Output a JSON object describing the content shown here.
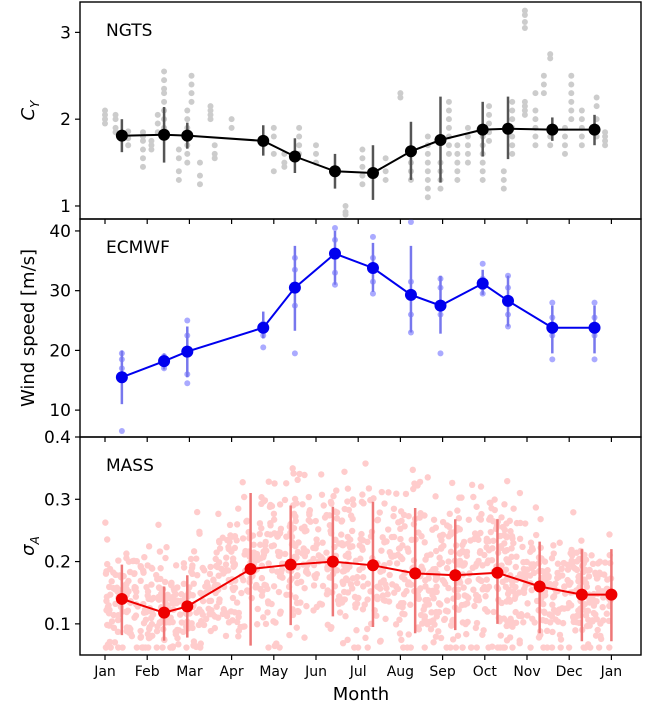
{
  "xaxis": {
    "label": "Month",
    "ticks": [
      "Jan",
      "Feb",
      "Mar",
      "Apr",
      "May",
      "Jun",
      "Jul",
      "Aug",
      "Sep",
      "Oct",
      "Nov",
      "Dec",
      "Jan"
    ]
  },
  "chart_data": [
    {
      "type": "line",
      "panel_label": "NGTS",
      "ylabel_main": "C",
      "ylabel_sub": "Y",
      "ylim": [
        0.85,
        3.35
      ],
      "yticks": [
        1,
        2,
        3
      ],
      "line_color": "#000000",
      "err_color": "#555555",
      "scatter_color": "#cccccc",
      "x": [
        0.5,
        1.25,
        1.5,
        2.3,
        2.65,
        3.3,
        3.7,
        4.3,
        5.0,
        5.5,
        5.85,
        6.3,
        6.95,
        7.5,
        8.0,
        8.6,
        9.3,
        9.7,
        10.2,
        10.7,
        11.2,
        11.65,
        12.0
      ],
      "mean_x": [
        0.4,
        1.4,
        1.95,
        3.75,
        4.5,
        5.45,
        6.35,
        7.25,
        7.95,
        8.95,
        9.55,
        10.6,
        11.6
      ],
      "mean_y": [
        1.81,
        1.82,
        1.81,
        1.75,
        1.57,
        1.4,
        1.38,
        1.63,
        1.76,
        1.88,
        1.89,
        1.88,
        1.88
      ],
      "err_lo": [
        1.62,
        1.5,
        1.66,
        1.58,
        1.38,
        1.2,
        1.07,
        1.3,
        1.27,
        1.57,
        1.54,
        1.75,
        1.7
      ],
      "err_hi": [
        2.0,
        2.14,
        1.96,
        1.93,
        1.78,
        1.6,
        1.7,
        1.97,
        2.26,
        2.2,
        2.26,
        2.02,
        2.05
      ],
      "scatter_groups": [
        {
          "x": 0.0,
          "y": [
            1.95,
            2.0,
            2.05,
            2.1
          ]
        },
        {
          "x": 0.25,
          "y": [
            1.85,
            1.9,
            2.0,
            2.05
          ]
        },
        {
          "x": 0.55,
          "y": [
            1.7,
            1.78,
            1.86
          ]
        },
        {
          "x": 0.9,
          "y": [
            1.45,
            1.55,
            1.65,
            1.75,
            1.8,
            1.85
          ]
        },
        {
          "x": 1.1,
          "y": [
            1.65,
            1.7,
            1.75
          ]
        },
        {
          "x": 1.25,
          "y": [
            1.85,
            1.95,
            2.05
          ]
        },
        {
          "x": 1.4,
          "y": [
            1.9,
            2.0,
            2.1,
            2.2,
            2.3,
            2.35,
            2.45,
            2.55
          ]
        },
        {
          "x": 1.75,
          "y": [
            1.3,
            1.4,
            1.55,
            1.65
          ]
        },
        {
          "x": 1.95,
          "y": [
            1.5,
            1.6,
            1.7,
            1.8,
            1.9,
            2.0,
            2.1
          ]
        },
        {
          "x": 2.05,
          "y": [
            2.2,
            2.3,
            2.4,
            2.5
          ]
        },
        {
          "x": 2.25,
          "y": [
            1.25,
            1.35,
            1.5
          ]
        },
        {
          "x": 2.5,
          "y": [
            2.0,
            2.05,
            2.1,
            2.15
          ]
        },
        {
          "x": 2.6,
          "y": [
            1.55,
            1.6,
            1.7
          ]
        },
        {
          "x": 3.0,
          "y": [
            1.9,
            2.0
          ]
        },
        {
          "x": 4.0,
          "y": [
            1.4,
            1.6,
            1.8,
            1.9
          ]
        },
        {
          "x": 4.25,
          "y": [
            1.45,
            1.5,
            1.6
          ]
        },
        {
          "x": 4.6,
          "y": [
            1.6,
            1.7,
            1.8,
            1.9
          ]
        },
        {
          "x": 5.0,
          "y": [
            1.5,
            1.6,
            1.7
          ]
        },
        {
          "x": 5.7,
          "y": [
            0.9,
            0.93,
            1.0
          ]
        },
        {
          "x": 6.1,
          "y": [
            1.25,
            1.35,
            1.45,
            1.55,
            1.65
          ]
        },
        {
          "x": 6.65,
          "y": [
            1.3,
            1.4,
            1.55
          ]
        },
        {
          "x": 7.0,
          "y": [
            2.25,
            2.3
          ]
        },
        {
          "x": 7.25,
          "y": [
            1.3,
            1.4,
            1.5
          ]
        },
        {
          "x": 7.65,
          "y": [
            1.1,
            1.2,
            1.3,
            1.4,
            1.5,
            1.6,
            1.7,
            1.8
          ]
        },
        {
          "x": 7.95,
          "y": [
            1.2,
            1.3,
            1.4,
            1.5
          ]
        },
        {
          "x": 8.15,
          "y": [
            1.6,
            1.7,
            1.8,
            1.9,
            2.0,
            2.1,
            2.2
          ]
        },
        {
          "x": 8.35,
          "y": [
            1.3,
            1.4,
            1.5,
            1.6,
            1.7
          ]
        },
        {
          "x": 8.6,
          "y": [
            1.5,
            1.6,
            1.7,
            1.8,
            1.9
          ]
        },
        {
          "x": 8.95,
          "y": [
            1.3,
            1.4,
            1.5,
            1.6,
            1.7,
            1.8
          ]
        },
        {
          "x": 9.1,
          "y": [
            1.75,
            1.85,
            1.95,
            2.05,
            2.15
          ]
        },
        {
          "x": 9.45,
          "y": [
            1.2,
            1.3,
            1.4
          ]
        },
        {
          "x": 9.65,
          "y": [
            1.6,
            1.7,
            1.8,
            1.9,
            2.0,
            2.1,
            2.2
          ]
        },
        {
          "x": 9.95,
          "y": [
            2.05,
            2.1,
            2.15,
            2.2,
            3.05,
            3.12,
            3.2,
            3.25
          ]
        },
        {
          "x": 10.2,
          "y": [
            1.7,
            1.8,
            1.9,
            2.0,
            2.1,
            2.3
          ]
        },
        {
          "x": 10.4,
          "y": [
            2.3,
            2.4,
            2.5
          ]
        },
        {
          "x": 10.55,
          "y": [
            1.7,
            1.8,
            2.7,
            2.75
          ]
        },
        {
          "x": 10.9,
          "y": [
            1.6,
            1.7,
            1.8,
            1.9
          ]
        },
        {
          "x": 11.05,
          "y": [
            2.0,
            2.1,
            2.2,
            2.3,
            2.4,
            2.5
          ]
        },
        {
          "x": 11.3,
          "y": [
            1.7,
            1.8,
            1.9,
            2.0,
            2.1
          ]
        },
        {
          "x": 11.65,
          "y": [
            1.8,
            1.9,
            2.0,
            2.15,
            2.25
          ]
        },
        {
          "x": 11.85,
          "y": [
            1.7,
            1.75,
            1.8,
            1.85
          ]
        }
      ]
    },
    {
      "type": "line",
      "panel_label": "ECMWF",
      "ylabel_main": "Wind speed [m/s]",
      "ylabel_sub": "",
      "ylim": [
        5.5,
        42
      ],
      "yticks": [
        10,
        20,
        30,
        40
      ],
      "line_color": "#0000ee",
      "err_color": "#7777ee",
      "scatter_color": "#aaaaff",
      "mean_x": [
        0.4,
        1.4,
        1.95,
        3.75,
        4.5,
        5.45,
        6.35,
        7.25,
        7.95,
        8.95,
        9.55,
        10.6,
        11.6
      ],
      "mean_y": [
        15.5,
        18.2,
        19.8,
        23.8,
        30.5,
        36.2,
        33.8,
        29.3,
        27.5,
        31.2,
        28.3,
        23.8,
        23.8
      ],
      "err_lo": [
        11.0,
        16.8,
        15.5,
        22.0,
        23.3,
        31.0,
        29.8,
        23.0,
        22.8,
        29.3,
        24.0,
        19.5,
        19.5
      ],
      "err_hi": [
        20.0,
        19.5,
        24.0,
        26.5,
        37.5,
        40.0,
        38.0,
        37.5,
        32.5,
        33.5,
        32.5,
        27.5,
        27.5
      ],
      "scatter_groups": [
        {
          "x": 0.4,
          "y": [
            6.5,
            17.0,
            18.5,
            19.5
          ]
        },
        {
          "x": 1.4,
          "y": [
            17.0,
            18.0,
            19.0
          ]
        },
        {
          "x": 1.95,
          "y": [
            14.5,
            16.0,
            22.5,
            25.0
          ]
        },
        {
          "x": 3.75,
          "y": [
            20.5,
            22.5,
            24.5
          ]
        },
        {
          "x": 4.5,
          "y": [
            19.5,
            27.5,
            31.0,
            33.5,
            35.5
          ]
        },
        {
          "x": 5.45,
          "y": [
            31.0,
            33.0,
            38.5,
            40.5
          ]
        },
        {
          "x": 6.35,
          "y": [
            29.5,
            31.5,
            35.5,
            39.0
          ]
        },
        {
          "x": 7.25,
          "y": [
            23.0,
            26.0,
            29.0,
            31.5,
            41.5
          ]
        },
        {
          "x": 7.95,
          "y": [
            19.5,
            26.0,
            30.5,
            32.0
          ]
        },
        {
          "x": 8.95,
          "y": [
            29.5,
            30.5,
            32.0,
            34.5
          ]
        },
        {
          "x": 9.55,
          "y": [
            24.0,
            26.0,
            30.5,
            32.5
          ]
        },
        {
          "x": 10.6,
          "y": [
            18.5,
            22.5,
            25.5,
            28.0
          ]
        },
        {
          "x": 11.6,
          "y": [
            18.5,
            22.5,
            25.5,
            28.0
          ]
        }
      ]
    },
    {
      "type": "line",
      "panel_label": "MASS",
      "ylabel_main": "σ",
      "ylabel_sub": "A",
      "ylim": [
        0.05,
        0.4
      ],
      "yticks": [
        0.1,
        0.2,
        0.3,
        0.4
      ],
      "ytick_labels": [
        "0.1",
        "0.2",
        "0.3",
        "0.4"
      ],
      "line_color": "#ee0000",
      "err_color": "#ee7777",
      "scatter_color": "#ffcccc",
      "mean_x": [
        0.4,
        1.4,
        1.95,
        3.75,
        4.5,
        5.45,
        6.35,
        7.25,
        7.95,
        8.95,
        9.55,
        10.6,
        11.6
      ],
      "mean_y": [
        0.14,
        0.118,
        0.128,
        0.188,
        0.195,
        0.2,
        0.194,
        0.181,
        0.178,
        0.182,
        0.16,
        0.147,
        0.147
      ],
      "err_lo": [
        0.082,
        0.073,
        0.078,
        0.065,
        0.098,
        0.112,
        0.095,
        0.085,
        0.09,
        0.1,
        0.085,
        0.072,
        0.072
      ],
      "err_hi": [
        0.195,
        0.16,
        0.178,
        0.31,
        0.29,
        0.288,
        0.296,
        0.286,
        0.268,
        0.268,
        0.232,
        0.22,
        0.22
      ],
      "mean_x_display": [
        0.4,
        1.4,
        1.95,
        3.45,
        4.4,
        5.4,
        6.35,
        7.35,
        8.3,
        9.3,
        10.3,
        11.3,
        12.0
      ],
      "scatter_cloud": {
        "x_min": 0.0,
        "x_max": 12.0,
        "n": 1400
      }
    }
  ]
}
